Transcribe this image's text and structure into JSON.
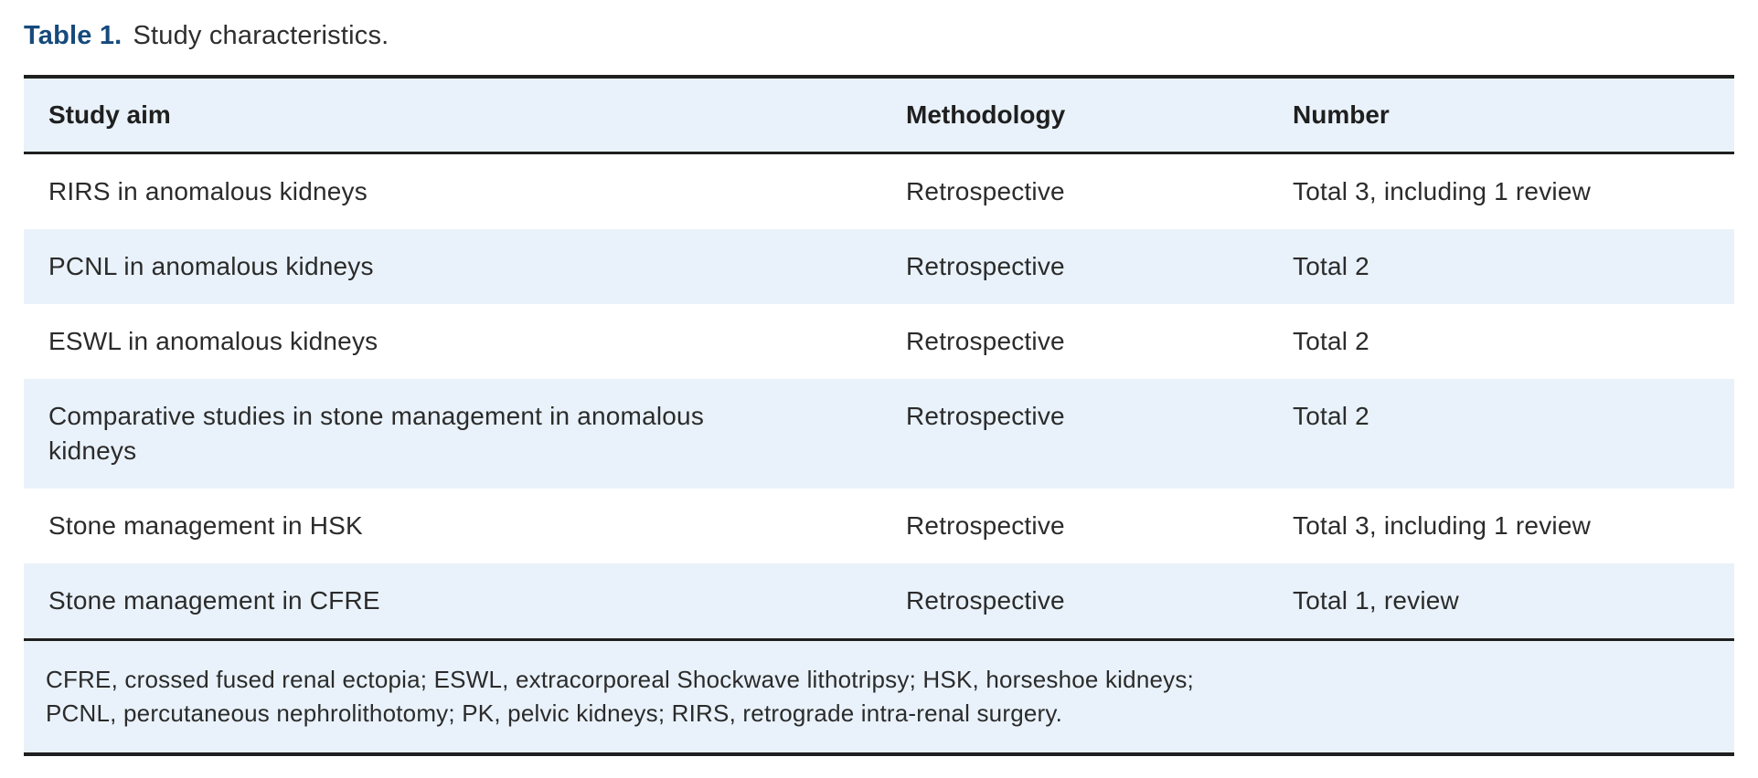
{
  "caption": {
    "label": "Table 1.",
    "text": "Study characteristics."
  },
  "table": {
    "columns": [
      "Study aim",
      "Methodology",
      "Number"
    ],
    "rows": [
      {
        "aim": "RIRS in anomalous kidneys",
        "methodology": "Retrospective",
        "number": "Total 3, including 1 review"
      },
      {
        "aim": "PCNL in anomalous kidneys",
        "methodology": "Retrospective",
        "number": "Total 2"
      },
      {
        "aim": "ESWL in anomalous kidneys",
        "methodology": "Retrospective",
        "number": "Total 2"
      },
      {
        "aim": "Comparative studies in stone management in anomalous kidneys",
        "methodology": "Retrospective",
        "number": "Total 2"
      },
      {
        "aim": "Stone management in HSK",
        "methodology": "Retrospective",
        "number": "Total 3, including 1 review"
      },
      {
        "aim": "Stone management in CFRE",
        "methodology": "Retrospective",
        "number": "Total 1, review"
      }
    ],
    "footnote_lines": [
      "CFRE, crossed fused renal ectopia; ESWL, extracorporeal Shockwave lithotripsy; HSK, horseshoe kidneys;",
      "PCNL, percutaneous nephrolithotomy; PK, pelvic kidneys; RIRS, retrograde intra-renal surgery."
    ]
  },
  "colors": {
    "caption_accent": "#164a7c",
    "row_highlight": "#e9f2fa",
    "rule": "#1f1f1f",
    "text": "#2b2b2b"
  }
}
